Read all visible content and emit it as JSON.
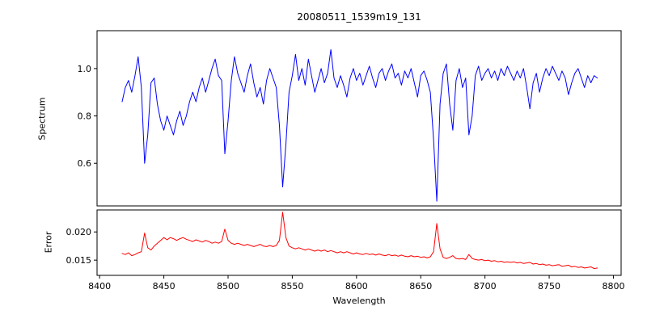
{
  "figure": {
    "title": "20080511_1539m19_131",
    "xlabel": "Wavelength",
    "background": "#ffffff"
  },
  "chart_data": [
    {
      "type": "line",
      "name": "spectrum",
      "title": "20080511_1539m19_131",
      "ylabel": "Spectrum",
      "color": "#0000ff",
      "xlim": [
        8398,
        8806
      ],
      "ylim": [
        0.42,
        1.16
      ],
      "grid": false,
      "legend": "none",
      "y_ticks": [
        0.6,
        0.8,
        1.0
      ],
      "y_tick_labels": [
        "0.6",
        "0.8",
        "1.0"
      ],
      "x_ticks": [],
      "x_tick_labels": [],
      "x_start": 8417.5,
      "x_step": 2.5,
      "values": [
        0.86,
        0.92,
        0.95,
        0.9,
        0.97,
        1.05,
        0.92,
        0.6,
        0.72,
        0.94,
        0.96,
        0.85,
        0.78,
        0.74,
        0.8,
        0.76,
        0.72,
        0.78,
        0.82,
        0.76,
        0.8,
        0.86,
        0.9,
        0.86,
        0.92,
        0.96,
        0.9,
        0.95,
        1.0,
        1.04,
        0.97,
        0.95,
        0.64,
        0.78,
        0.95,
        1.05,
        0.98,
        0.94,
        0.9,
        0.97,
        1.02,
        0.94,
        0.88,
        0.92,
        0.85,
        0.95,
        1.0,
        0.96,
        0.92,
        0.76,
        0.5,
        0.68,
        0.9,
        0.97,
        1.06,
        0.95,
        1.0,
        0.93,
        1.04,
        0.97,
        0.9,
        0.95,
        1.0,
        0.94,
        0.98,
        1.08,
        0.96,
        0.92,
        0.97,
        0.93,
        0.88,
        0.96,
        1.0,
        0.95,
        0.98,
        0.93,
        0.97,
        1.01,
        0.96,
        0.92,
        0.98,
        1.0,
        0.95,
        0.99,
        1.02,
        0.96,
        0.98,
        0.93,
        0.99,
        0.96,
        1.0,
        0.94,
        0.88,
        0.97,
        0.99,
        0.95,
        0.9,
        0.7,
        0.44,
        0.85,
        0.98,
        1.02,
        0.85,
        0.74,
        0.95,
        1.0,
        0.92,
        0.96,
        0.72,
        0.8,
        0.97,
        1.01,
        0.95,
        0.98,
        1.0,
        0.96,
        0.99,
        0.95,
        1.0,
        0.97,
        1.01,
        0.98,
        0.95,
        0.99,
        0.96,
        1.0,
        0.92,
        0.83,
        0.94,
        0.98,
        0.9,
        0.96,
        1.0,
        0.97,
        1.01,
        0.98,
        0.95,
        0.99,
        0.96,
        0.89,
        0.94,
        0.98,
        1.0,
        0.96,
        0.92,
        0.97,
        0.94,
        0.97,
        0.96
      ]
    },
    {
      "type": "line",
      "name": "error",
      "title": "",
      "ylabel": "Error",
      "xlabel": "Wavelength",
      "color": "#ff0000",
      "xlim": [
        8398,
        8806
      ],
      "ylim": [
        0.0123,
        0.0239
      ],
      "grid": false,
      "legend": "none",
      "y_ticks": [
        0.015,
        0.02
      ],
      "y_tick_labels": [
        "0.015",
        "0.020"
      ],
      "x_ticks": [
        8400,
        8450,
        8500,
        8550,
        8600,
        8650,
        8700,
        8750,
        8800
      ],
      "x_tick_labels": [
        "8400",
        "8450",
        "8500",
        "8550",
        "8600",
        "8650",
        "8700",
        "8750",
        "8800"
      ],
      "x_start": 8417.5,
      "x_step": 2.5,
      "values": [
        0.0162,
        0.016,
        0.0163,
        0.0158,
        0.016,
        0.0163,
        0.0165,
        0.0198,
        0.0172,
        0.0168,
        0.0175,
        0.018,
        0.0185,
        0.019,
        0.0186,
        0.019,
        0.0188,
        0.0185,
        0.0188,
        0.019,
        0.0187,
        0.0185,
        0.0183,
        0.0186,
        0.0184,
        0.0182,
        0.0185,
        0.0183,
        0.018,
        0.0182,
        0.018,
        0.0183,
        0.0205,
        0.0185,
        0.018,
        0.0178,
        0.018,
        0.0178,
        0.0176,
        0.0178,
        0.0176,
        0.0174,
        0.0176,
        0.0178,
        0.0175,
        0.0174,
        0.0176,
        0.0174,
        0.0176,
        0.0185,
        0.0235,
        0.019,
        0.0175,
        0.0172,
        0.017,
        0.0172,
        0.017,
        0.0168,
        0.017,
        0.0168,
        0.0166,
        0.0168,
        0.0166,
        0.0168,
        0.0165,
        0.0167,
        0.0165,
        0.0163,
        0.0165,
        0.0163,
        0.0165,
        0.0163,
        0.0161,
        0.0163,
        0.0161,
        0.016,
        0.0162,
        0.016,
        0.0161,
        0.0159,
        0.0161,
        0.0159,
        0.0158,
        0.016,
        0.0158,
        0.0159,
        0.0157,
        0.0159,
        0.0157,
        0.0156,
        0.0158,
        0.0156,
        0.0157,
        0.0155,
        0.0156,
        0.0154,
        0.0156,
        0.0165,
        0.0215,
        0.017,
        0.0155,
        0.0153,
        0.0155,
        0.0158,
        0.0153,
        0.0152,
        0.0153,
        0.0151,
        0.016,
        0.0153,
        0.0151,
        0.015,
        0.0151,
        0.0149,
        0.015,
        0.0148,
        0.0149,
        0.0147,
        0.0148,
        0.0146,
        0.0147,
        0.0146,
        0.0147,
        0.0145,
        0.0146,
        0.0144,
        0.0145,
        0.0146,
        0.0143,
        0.0144,
        0.0142,
        0.0143,
        0.0141,
        0.0142,
        0.014,
        0.0141,
        0.0142,
        0.0139,
        0.014,
        0.0141,
        0.0138,
        0.0139,
        0.0137,
        0.0138,
        0.0136,
        0.0137,
        0.0138,
        0.0135,
        0.0136
      ]
    }
  ]
}
